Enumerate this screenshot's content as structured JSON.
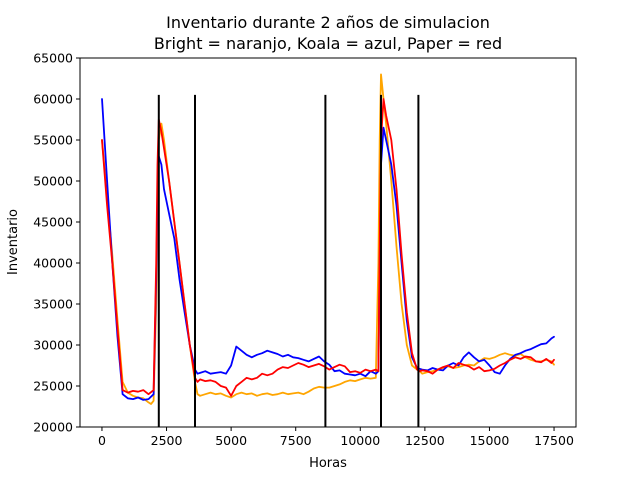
{
  "chart_data": {
    "type": "line",
    "title_line1": "Inventario durante 2 años de simulacion",
    "title_line2": "Bright = naranjo, Koala = azul, Paper = red",
    "xlabel": "Horas",
    "ylabel": "Inventario",
    "xlim": [
      -850,
      18350
    ],
    "ylim": [
      20000,
      65000
    ],
    "x_ticks": [
      0,
      2500,
      5000,
      7500,
      10000,
      12500,
      15000,
      17500
    ],
    "y_ticks": [
      20000,
      25000,
      30000,
      35000,
      40000,
      45000,
      50000,
      55000,
      60000,
      65000
    ],
    "grid": false,
    "vertical_lines": [
      {
        "x": 2200,
        "y_range": [
          20000,
          60500
        ]
      },
      {
        "x": 3600,
        "y_range": [
          20000,
          60500
        ]
      },
      {
        "x": 8650,
        "y_range": [
          20000,
          60500
        ]
      },
      {
        "x": 10800,
        "y_range": [
          20000,
          60500
        ]
      },
      {
        "x": 12250,
        "y_range": [
          20000,
          60500
        ]
      }
    ],
    "series": [
      {
        "color": "#ffa500",
        "x": [
          0,
          200,
          400,
          600,
          800,
          1000,
          1200,
          1400,
          1600,
          1800,
          1900,
          2000,
          2100,
          2150,
          2200,
          2300,
          2400,
          2600,
          2800,
          3000,
          3200,
          3400,
          3600,
          3700,
          3800,
          4000,
          4200,
          4400,
          4600,
          4800,
          5000,
          5200,
          5400,
          5600,
          5800,
          6000,
          6200,
          6400,
          6600,
          6800,
          7000,
          7200,
          7400,
          7600,
          7800,
          8000,
          8200,
          8400,
          8600,
          8800,
          9000,
          9200,
          9400,
          9600,
          9800,
          10000,
          10200,
          10400,
          10600,
          10700,
          10750,
          10800,
          10900,
          11000,
          11200,
          11400,
          11600,
          11800,
          12000,
          12200,
          12300,
          12400,
          12600,
          12800,
          13000,
          13200,
          13400,
          13600,
          13800,
          14000,
          14200,
          14400,
          14600,
          14800,
          15000,
          15200,
          15400,
          15600,
          15800,
          16000,
          16200,
          16400,
          16600,
          16800,
          17000,
          17200,
          17400,
          17500
        ],
        "y": [
          55000,
          48000,
          41000,
          33000,
          25500,
          24200,
          23800,
          23600,
          23500,
          23000,
          22800,
          23200,
          35000,
          45000,
          55000,
          57000,
          55000,
          50000,
          45000,
          40000,
          35000,
          30000,
          25500,
          24000,
          23800,
          24000,
          24200,
          24000,
          24100,
          23800,
          23600,
          24000,
          24200,
          24000,
          24100,
          23800,
          24000,
          24100,
          23900,
          24000,
          24200,
          24000,
          24100,
          24200,
          24000,
          24300,
          24700,
          24900,
          24800,
          24800,
          25000,
          25200,
          25500,
          25700,
          25600,
          25800,
          26000,
          25900,
          26000,
          40000,
          55000,
          63000,
          60000,
          57000,
          50000,
          42000,
          35000,
          30000,
          27500,
          27000,
          26800,
          26500,
          26700,
          26800,
          27000,
          27200,
          27400,
          27200,
          27300,
          27500,
          27600,
          27500,
          28000,
          28400,
          28300,
          28500,
          28800,
          29000,
          28800,
          28700,
          28900,
          28500,
          28200,
          28000,
          28000,
          28200,
          28000,
          27600
        ]
      },
      {
        "color": "#0000ff",
        "x": [
          0,
          200,
          400,
          600,
          800,
          1000,
          1200,
          1400,
          1600,
          1800,
          2000,
          2100,
          2150,
          2200,
          2300,
          2400,
          2600,
          2800,
          3000,
          3200,
          3400,
          3600,
          3700,
          3800,
          4000,
          4200,
          4400,
          4600,
          4800,
          5000,
          5200,
          5400,
          5600,
          5800,
          6000,
          6200,
          6400,
          6600,
          6800,
          7000,
          7200,
          7400,
          7600,
          7800,
          8000,
          8200,
          8400,
          8600,
          8800,
          9000,
          9200,
          9400,
          9600,
          9800,
          10000,
          10200,
          10400,
          10600,
          10700,
          10750,
          10800,
          10900,
          11000,
          11200,
          11400,
          11600,
          11800,
          12000,
          12200,
          12300,
          12400,
          12600,
          12800,
          13000,
          13200,
          13400,
          13600,
          13800,
          14000,
          14200,
          14400,
          14600,
          14800,
          15000,
          15200,
          15400,
          15600,
          15800,
          16000,
          16200,
          16400,
          16600,
          16800,
          17000,
          17200,
          17400,
          17500
        ],
        "y": [
          60000,
          50000,
          40000,
          31000,
          24000,
          23500,
          23400,
          23600,
          23300,
          23400,
          24000,
          38000,
          48000,
          53000,
          52000,
          49000,
          46000,
          43000,
          38000,
          34000,
          30000,
          27000,
          26500,
          26600,
          26800,
          26500,
          26600,
          26700,
          26500,
          27500,
          29800,
          29300,
          28800,
          28500,
          28800,
          29000,
          29300,
          29100,
          28900,
          28600,
          28800,
          28500,
          28400,
          28200,
          28000,
          28300,
          28600,
          28000,
          27600,
          26800,
          26900,
          26500,
          26400,
          26300,
          26500,
          26200,
          26800,
          26500,
          26800,
          40000,
          52000,
          56500,
          55000,
          52000,
          47000,
          40000,
          33000,
          28500,
          27200,
          27100,
          27000,
          26900,
          27200,
          27000,
          26900,
          27500,
          27800,
          27500,
          28500,
          29100,
          28500,
          28000,
          28200,
          27500,
          26700,
          26500,
          27500,
          28300,
          28800,
          29000,
          29300,
          29500,
          29800,
          30100,
          30200,
          30800,
          31000
        ]
      },
      {
        "color": "#ff0000",
        "x": [
          0,
          200,
          400,
          600,
          800,
          1000,
          1200,
          1400,
          1600,
          1800,
          2000,
          2100,
          2150,
          2200,
          2300,
          2400,
          2600,
          2800,
          3000,
          3200,
          3400,
          3600,
          3700,
          3800,
          4000,
          4200,
          4400,
          4600,
          4800,
          5000,
          5200,
          5400,
          5600,
          5800,
          6000,
          6200,
          6400,
          6600,
          6800,
          7000,
          7200,
          7400,
          7600,
          7800,
          8000,
          8200,
          8400,
          8600,
          8800,
          9000,
          9200,
          9400,
          9600,
          9800,
          10000,
          10200,
          10400,
          10600,
          10700,
          10750,
          10800,
          10900,
          11000,
          11200,
          11400,
          11600,
          11800,
          12000,
          12200,
          12300,
          12400,
          12600,
          12800,
          13000,
          13200,
          13400,
          13600,
          13800,
          14000,
          14200,
          14400,
          14600,
          14800,
          15000,
          15200,
          15400,
          15600,
          15800,
          16000,
          16200,
          16400,
          16600,
          16800,
          17000,
          17200,
          17400,
          17500
        ],
        "y": [
          55000,
          47000,
          40000,
          32000,
          24500,
          24200,
          24400,
          24300,
          24500,
          24000,
          24500,
          40000,
          52000,
          57500,
          56000,
          54000,
          50000,
          45000,
          40000,
          35000,
          30000,
          26000,
          25500,
          25800,
          25600,
          25700,
          25500,
          25000,
          24800,
          23800,
          25000,
          25500,
          26000,
          25800,
          26000,
          26500,
          26300,
          26500,
          27000,
          27300,
          27200,
          27500,
          27800,
          27600,
          27300,
          27500,
          27700,
          27400,
          27000,
          27300,
          27600,
          27400,
          26700,
          26800,
          26600,
          27000,
          26800,
          27000,
          26800,
          42000,
          55000,
          60000,
          58000,
          55000,
          49000,
          41000,
          34000,
          29000,
          27000,
          26800,
          26900,
          26800,
          26500,
          27000,
          27300,
          27500,
          27200,
          27800,
          27600,
          27400,
          27000,
          27300,
          26800,
          26900,
          27100,
          27500,
          27800,
          28200,
          28500,
          28300,
          28600,
          28500,
          28000,
          27900,
          28300,
          27800,
          28200
        ]
      }
    ]
  }
}
